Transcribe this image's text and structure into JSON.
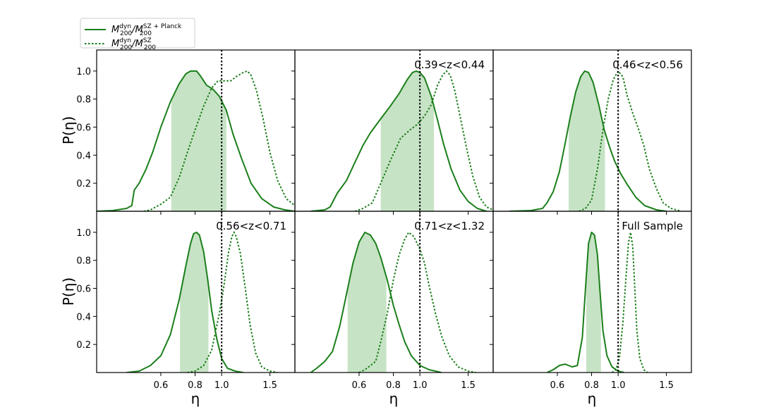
{
  "chart_data": {
    "type": "line",
    "layout": "2x3 grid of panels, shared axes",
    "xlabel": "η",
    "ylabel": "P(η)",
    "xlim": [
      0.35,
      1.85
    ],
    "ylim": [
      0,
      1.15
    ],
    "x_scale": "log",
    "xticks": [
      0.6,
      0.8,
      1.0,
      1.5
    ],
    "xtick_labels": [
      "0.6",
      "0.8",
      "1.0",
      "1.5"
    ],
    "yticks": [
      0.2,
      0.4,
      0.6,
      0.8,
      1.0
    ],
    "ytick_labels": [
      "0.2",
      "0.4",
      "0.6",
      "0.8",
      "1.0"
    ],
    "reference_line": {
      "x": 1.0,
      "style": "dotted",
      "color": "#000000"
    },
    "colors": {
      "line": "#1a7f1a",
      "band": "#b9dcb6"
    },
    "legend": {
      "placement": "top-left, above the grid",
      "entries": [
        {
          "style": "solid",
          "base": "M",
          "sup": "dyn",
          "sub": "200",
          "sep": "/",
          "base2": "M",
          "sup2": "SZ + Planck",
          "sub2": "200"
        },
        {
          "style": "dotted",
          "base": "M",
          "sup": "dyn",
          "sub": "200",
          "sep": "/",
          "base2": "M",
          "sup2": "SZ",
          "sub2": "200"
        }
      ]
    },
    "panels": [
      {
        "label": "",
        "band": [
          0.655,
          1.04
        ],
        "solid": [
          [
            0.35,
            0
          ],
          [
            0.4,
            0.005
          ],
          [
            0.45,
            0.02
          ],
          [
            0.47,
            0.04
          ],
          [
            0.48,
            0.15
          ],
          [
            0.5,
            0.2
          ],
          [
            0.53,
            0.3
          ],
          [
            0.56,
            0.42
          ],
          [
            0.6,
            0.6
          ],
          [
            0.65,
            0.78
          ],
          [
            0.7,
            0.91
          ],
          [
            0.74,
            0.98
          ],
          [
            0.77,
            1.0
          ],
          [
            0.81,
            1.0
          ],
          [
            0.84,
            0.96
          ],
          [
            0.88,
            0.9
          ],
          [
            0.93,
            0.87
          ],
          [
            0.98,
            0.82
          ],
          [
            1.04,
            0.72
          ],
          [
            1.1,
            0.55
          ],
          [
            1.18,
            0.38
          ],
          [
            1.28,
            0.2
          ],
          [
            1.4,
            0.09
          ],
          [
            1.55,
            0.03
          ],
          [
            1.7,
            0.01
          ],
          [
            1.85,
            0
          ]
        ],
        "dotted": [
          [
            0.52,
            0
          ],
          [
            0.55,
            0.01
          ],
          [
            0.6,
            0.05
          ],
          [
            0.65,
            0.1
          ],
          [
            0.7,
            0.24
          ],
          [
            0.75,
            0.42
          ],
          [
            0.8,
            0.58
          ],
          [
            0.86,
            0.75
          ],
          [
            0.92,
            0.88
          ],
          [
            0.97,
            0.93
          ],
          [
            1.02,
            0.93
          ],
          [
            1.08,
            0.93
          ],
          [
            1.13,
            0.96
          ],
          [
            1.2,
            0.99
          ],
          [
            1.24,
            1.0
          ],
          [
            1.28,
            0.97
          ],
          [
            1.34,
            0.86
          ],
          [
            1.42,
            0.65
          ],
          [
            1.5,
            0.42
          ],
          [
            1.6,
            0.22
          ],
          [
            1.72,
            0.09
          ],
          [
            1.85,
            0.04
          ]
        ]
      },
      {
        "label": "0.39<z<0.44",
        "band": [
          0.72,
          1.125
        ],
        "solid": [
          [
            0.4,
            0
          ],
          [
            0.45,
            0.01
          ],
          [
            0.47,
            0.03
          ],
          [
            0.5,
            0.13
          ],
          [
            0.54,
            0.22
          ],
          [
            0.58,
            0.35
          ],
          [
            0.62,
            0.47
          ],
          [
            0.66,
            0.56
          ],
          [
            0.72,
            0.66
          ],
          [
            0.78,
            0.75
          ],
          [
            0.84,
            0.84
          ],
          [
            0.9,
            0.94
          ],
          [
            0.94,
            0.99
          ],
          [
            0.97,
            1.0
          ],
          [
            1.0,
            0.99
          ],
          [
            1.04,
            0.95
          ],
          [
            1.1,
            0.82
          ],
          [
            1.16,
            0.65
          ],
          [
            1.22,
            0.48
          ],
          [
            1.3,
            0.3
          ],
          [
            1.4,
            0.15
          ],
          [
            1.5,
            0.07
          ],
          [
            1.62,
            0.02
          ],
          [
            1.75,
            0
          ]
        ],
        "dotted": [
          [
            0.58,
            0
          ],
          [
            0.62,
            0.02
          ],
          [
            0.67,
            0.06
          ],
          [
            0.72,
            0.2
          ],
          [
            0.78,
            0.36
          ],
          [
            0.85,
            0.52
          ],
          [
            0.92,
            0.58
          ],
          [
            0.98,
            0.62
          ],
          [
            1.04,
            0.68
          ],
          [
            1.1,
            0.76
          ],
          [
            1.16,
            0.9
          ],
          [
            1.21,
            0.97
          ],
          [
            1.25,
            1.0
          ],
          [
            1.29,
            0.97
          ],
          [
            1.34,
            0.86
          ],
          [
            1.4,
            0.68
          ],
          [
            1.48,
            0.45
          ],
          [
            1.56,
            0.25
          ],
          [
            1.65,
            0.1
          ],
          [
            1.75,
            0.03
          ],
          [
            1.85,
            0.01
          ]
        ]
      },
      {
        "label": "0.46<z<0.56",
        "band": [
          0.66,
          0.895
        ],
        "solid": [
          [
            0.4,
            0
          ],
          [
            0.48,
            0.005
          ],
          [
            0.53,
            0.02
          ],
          [
            0.55,
            0.06
          ],
          [
            0.58,
            0.14
          ],
          [
            0.61,
            0.28
          ],
          [
            0.64,
            0.48
          ],
          [
            0.67,
            0.68
          ],
          [
            0.7,
            0.85
          ],
          [
            0.73,
            0.96
          ],
          [
            0.755,
            1.0
          ],
          [
            0.78,
            0.99
          ],
          [
            0.81,
            0.92
          ],
          [
            0.85,
            0.76
          ],
          [
            0.89,
            0.58
          ],
          [
            0.93,
            0.46
          ],
          [
            0.97,
            0.36
          ],
          [
            1.02,
            0.27
          ],
          [
            1.08,
            0.19
          ],
          [
            1.16,
            0.1
          ],
          [
            1.25,
            0.04
          ],
          [
            1.38,
            0.01
          ],
          [
            1.5,
            0
          ]
        ],
        "dotted": [
          [
            0.72,
            0
          ],
          [
            0.76,
            0.02
          ],
          [
            0.8,
            0.08
          ],
          [
            0.84,
            0.3
          ],
          [
            0.88,
            0.58
          ],
          [
            0.92,
            0.8
          ],
          [
            0.96,
            0.94
          ],
          [
            1.0,
            1.0
          ],
          [
            1.04,
            0.96
          ],
          [
            1.08,
            0.82
          ],
          [
            1.13,
            0.7
          ],
          [
            1.18,
            0.6
          ],
          [
            1.24,
            0.47
          ],
          [
            1.3,
            0.3
          ],
          [
            1.38,
            0.16
          ],
          [
            1.46,
            0.06
          ],
          [
            1.56,
            0.02
          ],
          [
            1.7,
            0
          ]
        ]
      },
      {
        "label": "0.56<z<0.71",
        "band": [
          0.705,
          0.895
        ],
        "solid": [
          [
            0.45,
            0
          ],
          [
            0.5,
            0.01
          ],
          [
            0.55,
            0.05
          ],
          [
            0.6,
            0.12
          ],
          [
            0.65,
            0.27
          ],
          [
            0.7,
            0.52
          ],
          [
            0.74,
            0.76
          ],
          [
            0.77,
            0.92
          ],
          [
            0.79,
            0.99
          ],
          [
            0.81,
            1.0
          ],
          [
            0.83,
            0.98
          ],
          [
            0.86,
            0.86
          ],
          [
            0.89,
            0.66
          ],
          [
            0.92,
            0.44
          ],
          [
            0.96,
            0.24
          ],
          [
            1.0,
            0.1
          ],
          [
            1.05,
            0.03
          ],
          [
            1.12,
            0.01
          ],
          [
            1.2,
            0
          ]
        ],
        "dotted": [
          [
            0.75,
            0
          ],
          [
            0.8,
            0.01
          ],
          [
            0.86,
            0.05
          ],
          [
            0.92,
            0.16
          ],
          [
            0.98,
            0.42
          ],
          [
            1.02,
            0.62
          ],
          [
            1.06,
            0.86
          ],
          [
            1.09,
            0.97
          ],
          [
            1.11,
            1.0
          ],
          [
            1.13,
            0.97
          ],
          [
            1.17,
            0.85
          ],
          [
            1.22,
            0.6
          ],
          [
            1.27,
            0.34
          ],
          [
            1.33,
            0.14
          ],
          [
            1.4,
            0.04
          ],
          [
            1.5,
            0.01
          ],
          [
            1.6,
            0
          ]
        ]
      },
      {
        "label": "0.71<z<1.32",
        "band": [
          0.545,
          0.755
        ],
        "solid": [
          [
            0.4,
            0
          ],
          [
            0.42,
            0.03
          ],
          [
            0.45,
            0.08
          ],
          [
            0.48,
            0.15
          ],
          [
            0.51,
            0.33
          ],
          [
            0.54,
            0.56
          ],
          [
            0.57,
            0.78
          ],
          [
            0.6,
            0.93
          ],
          [
            0.63,
            1.0
          ],
          [
            0.66,
            0.98
          ],
          [
            0.69,
            0.92
          ],
          [
            0.72,
            0.82
          ],
          [
            0.76,
            0.66
          ],
          [
            0.8,
            0.48
          ],
          [
            0.84,
            0.34
          ],
          [
            0.88,
            0.22
          ],
          [
            0.93,
            0.12
          ],
          [
            1.0,
            0.05
          ],
          [
            1.08,
            0.02
          ],
          [
            1.2,
            0
          ]
        ],
        "dotted": [
          [
            0.6,
            0
          ],
          [
            0.63,
            0.02
          ],
          [
            0.66,
            0.05
          ],
          [
            0.69,
            0.08
          ],
          [
            0.72,
            0.22
          ],
          [
            0.76,
            0.42
          ],
          [
            0.8,
            0.66
          ],
          [
            0.84,
            0.84
          ],
          [
            0.88,
            0.95
          ],
          [
            0.91,
            1.0
          ],
          [
            0.95,
            0.97
          ],
          [
            1.0,
            0.88
          ],
          [
            1.04,
            0.78
          ],
          [
            1.08,
            0.62
          ],
          [
            1.14,
            0.42
          ],
          [
            1.2,
            0.26
          ],
          [
            1.28,
            0.12
          ],
          [
            1.38,
            0.04
          ],
          [
            1.5,
            0.01
          ],
          [
            1.6,
            0
          ]
        ]
      },
      {
        "label": "Full Sample",
        "band": [
          0.765,
          0.865
        ],
        "solid": [
          [
            0.55,
            0
          ],
          [
            0.58,
            0.02
          ],
          [
            0.61,
            0.05
          ],
          [
            0.64,
            0.06
          ],
          [
            0.68,
            0.04
          ],
          [
            0.71,
            0.05
          ],
          [
            0.74,
            0.25
          ],
          [
            0.76,
            0.6
          ],
          [
            0.78,
            0.92
          ],
          [
            0.8,
            1.0
          ],
          [
            0.82,
            0.98
          ],
          [
            0.84,
            0.84
          ],
          [
            0.86,
            0.56
          ],
          [
            0.88,
            0.3
          ],
          [
            0.91,
            0.12
          ],
          [
            0.95,
            0.04
          ],
          [
            1.0,
            0.01
          ],
          [
            1.05,
            0
          ]
        ],
        "dotted": [
          [
            0.95,
            0
          ],
          [
            0.98,
            0.02
          ],
          [
            1.01,
            0.1
          ],
          [
            1.04,
            0.35
          ],
          [
            1.07,
            0.7
          ],
          [
            1.09,
            0.92
          ],
          [
            1.11,
            1.0
          ],
          [
            1.13,
            0.9
          ],
          [
            1.15,
            0.6
          ],
          [
            1.17,
            0.3
          ],
          [
            1.2,
            0.1
          ],
          [
            1.24,
            0.02
          ],
          [
            1.28,
            0
          ]
        ]
      }
    ]
  }
}
